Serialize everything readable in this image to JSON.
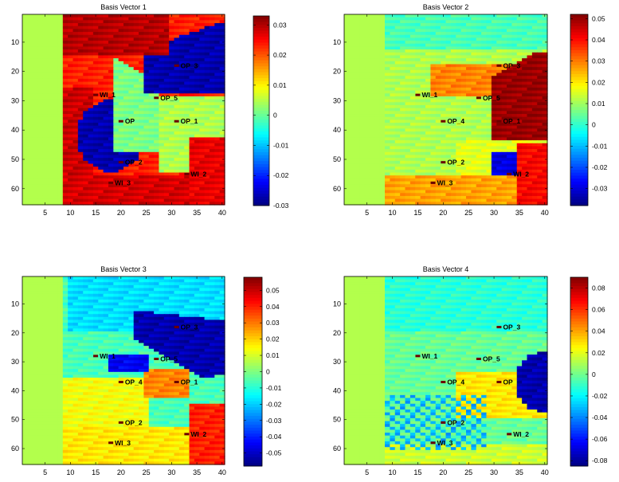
{
  "chart_data": [
    {
      "type": "heatmap",
      "title": "Basis Vector 1",
      "xlabel": "",
      "ylabel": "",
      "xlim": [
        0.5,
        40.5
      ],
      "ylim": [
        0.5,
        65.5
      ],
      "y_axis_direction": "down",
      "x_ticks": [
        5,
        10,
        15,
        20,
        25,
        30,
        35,
        40
      ],
      "y_ticks": [
        10,
        20,
        30,
        40,
        50,
        60
      ],
      "colorbar": {
        "colormap": "jet",
        "range": [
          -0.03,
          0.033
        ],
        "ticks": [
          0.03,
          0.02,
          0.01,
          0,
          -0.01,
          -0.02,
          -0.03
        ],
        "tick_labels": [
          "0.03",
          "0.02",
          "0.01",
          "0",
          "-0.01",
          "-0.02",
          "-0.03"
        ]
      },
      "wells": [
        {
          "label": "OP_3",
          "x": 31,
          "y": 18
        },
        {
          "label": "WI_1",
          "x": 15,
          "y": 28
        },
        {
          "label": "OP_5",
          "x": 27,
          "y": 29
        },
        {
          "label": "OP_1",
          "x": 31,
          "y": 37
        },
        {
          "label": "OP",
          "x": 20,
          "y": 37
        },
        {
          "label": "OP_2",
          "x": 20,
          "y": 51
        },
        {
          "label": "WI_2",
          "x": 33,
          "y": 55
        },
        {
          "label": "WI_3",
          "x": 18,
          "y": 58
        }
      ]
    },
    {
      "type": "heatmap",
      "title": "Basis Vector 2",
      "xlabel": "",
      "ylabel": "",
      "xlim": [
        0.5,
        40.5
      ],
      "ylim": [
        0.5,
        65.5
      ],
      "y_axis_direction": "down",
      "x_ticks": [
        5,
        10,
        15,
        20,
        25,
        30,
        35,
        40
      ],
      "y_ticks": [
        10,
        20,
        30,
        40,
        50,
        60
      ],
      "colorbar": {
        "colormap": "jet",
        "range": [
          -0.038,
          0.052
        ],
        "ticks": [
          0.05,
          0.04,
          0.03,
          0.02,
          0.01,
          0,
          -0.01,
          -0.02,
          -0.03
        ],
        "tick_labels": [
          "0.05",
          "0.04",
          "0.03",
          "0.02",
          "0.01",
          "0",
          "-0.01",
          "-0.02",
          "-0.03"
        ]
      },
      "wells": [
        {
          "label": "OP_3",
          "x": 31,
          "y": 18
        },
        {
          "label": "WI_1",
          "x": 15,
          "y": 28
        },
        {
          "label": "OP_5",
          "x": 27,
          "y": 29
        },
        {
          "label": "OP_4",
          "x": 20,
          "y": 37
        },
        {
          "label": "OP_1",
          "x": 31,
          "y": 37
        },
        {
          "label": "OP_2",
          "x": 20,
          "y": 51
        },
        {
          "label": "WI_2",
          "x": 33,
          "y": 55
        },
        {
          "label": "WI_3",
          "x": 18,
          "y": 58
        }
      ]
    },
    {
      "type": "heatmap",
      "title": "Basis Vector 3",
      "xlabel": "",
      "ylabel": "",
      "xlim": [
        0.5,
        40.5
      ],
      "ylim": [
        0.5,
        65.5
      ],
      "y_axis_direction": "down",
      "x_ticks": [
        5,
        10,
        15,
        20,
        25,
        30,
        35,
        40
      ],
      "y_ticks": [
        10,
        20,
        30,
        40,
        50,
        60
      ],
      "colorbar": {
        "colormap": "jet",
        "range": [
          -0.058,
          0.058
        ],
        "ticks": [
          0.05,
          0.04,
          0.03,
          0.02,
          0.01,
          0,
          -0.01,
          -0.02,
          -0.03,
          -0.04,
          -0.05
        ],
        "tick_labels": [
          "0.05",
          "0.04",
          "0.03",
          "0.02",
          "0.01",
          "0",
          "-0.01",
          "-0.02",
          "-0.03",
          "-0.04",
          "-0.05"
        ]
      },
      "wells": [
        {
          "label": "OP_3",
          "x": 31,
          "y": 18
        },
        {
          "label": "WI_1",
          "x": 15,
          "y": 28
        },
        {
          "label": "OP_5",
          "x": 27,
          "y": 29
        },
        {
          "label": "OP_4",
          "x": 20,
          "y": 37
        },
        {
          "label": "OP_1",
          "x": 31,
          "y": 37
        },
        {
          "label": "OP_2",
          "x": 20,
          "y": 51
        },
        {
          "label": "WI_2",
          "x": 33,
          "y": 55
        },
        {
          "label": "WI_3",
          "x": 18,
          "y": 58
        }
      ]
    },
    {
      "type": "heatmap",
      "title": "Basis Vector 4",
      "xlabel": "",
      "ylabel": "",
      "xlim": [
        0.5,
        40.5
      ],
      "ylim": [
        0.5,
        65.5
      ],
      "y_axis_direction": "down",
      "x_ticks": [
        5,
        10,
        15,
        20,
        25,
        30,
        35,
        40
      ],
      "y_ticks": [
        10,
        20,
        30,
        40,
        50,
        60
      ],
      "colorbar": {
        "colormap": "jet",
        "range": [
          -0.085,
          0.09
        ],
        "ticks": [
          0.08,
          0.06,
          0.04,
          0.02,
          0,
          -0.02,
          -0.04,
          -0.06,
          -0.08
        ],
        "tick_labels": [
          "0.08",
          "0.06",
          "0.04",
          "0.02",
          "0",
          "-0.02",
          "-0.04",
          "-0.06",
          "-0.08"
        ]
      },
      "wells": [
        {
          "label": "OP_3",
          "x": 31,
          "y": 18
        },
        {
          "label": "WI_1",
          "x": 15,
          "y": 28
        },
        {
          "label": "OP_5",
          "x": 27,
          "y": 29
        },
        {
          "label": "OP_4",
          "x": 20,
          "y": 37
        },
        {
          "label": "OP",
          "x": 31,
          "y": 37
        },
        {
          "label": "OP_2",
          "x": 20,
          "y": 51
        },
        {
          "label": "WI_2",
          "x": 33,
          "y": 55
        },
        {
          "label": "WI_3",
          "x": 18,
          "y": 58
        }
      ]
    }
  ]
}
